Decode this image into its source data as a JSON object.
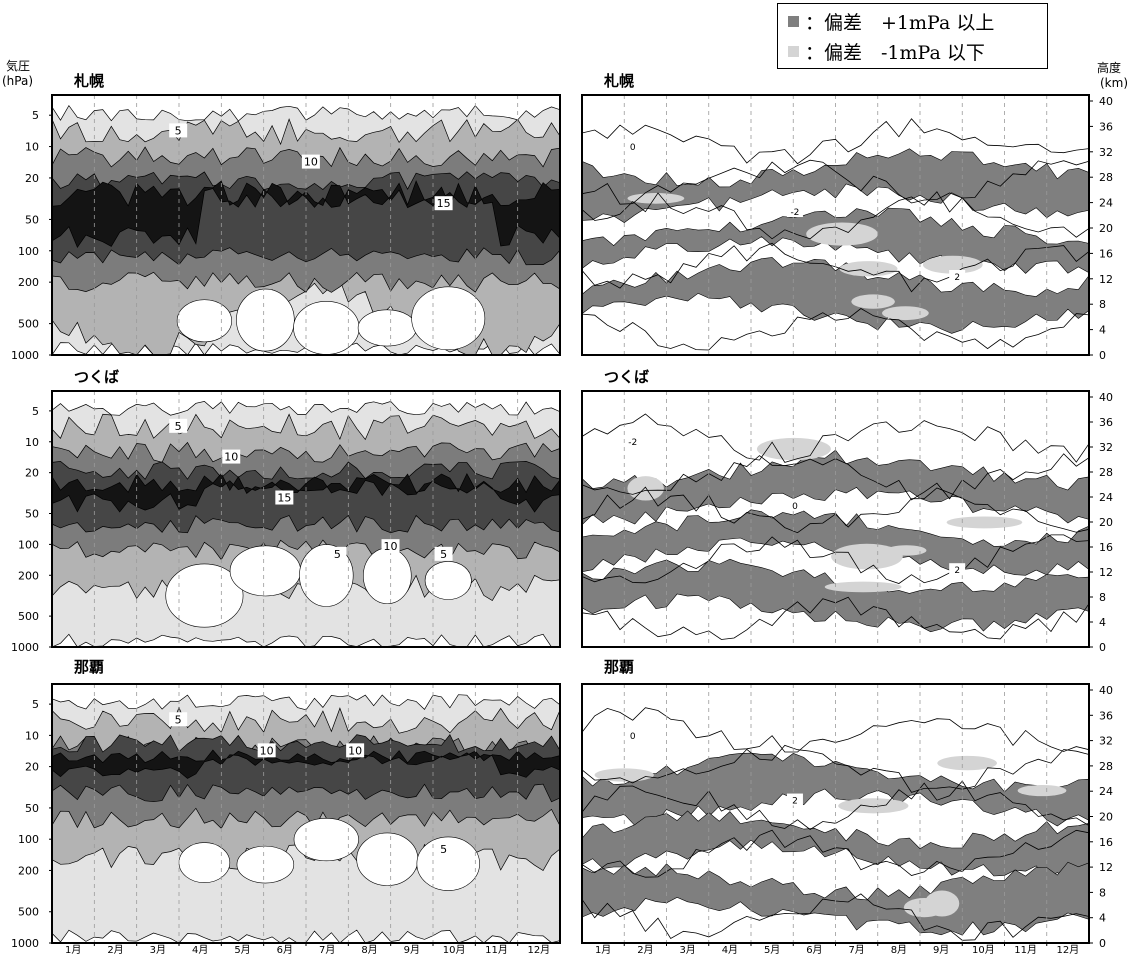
{
  "legend": {
    "items": [
      {
        "marker": "■",
        "color": "#7f7f7f",
        "text": "：偏差　+1mPa 以上"
      },
      {
        "marker": "■",
        "color": "#d4d4d4",
        "text": "：偏差　-1mPa 以下"
      }
    ]
  },
  "axis_titles": {
    "left": [
      "気圧",
      "(hPa)"
    ],
    "right": [
      "高度",
      "(km)"
    ]
  },
  "colors": {
    "plus_anomaly": "#7f7f7f",
    "minus_anomaly": "#d4d4d4",
    "level_0_5": "#e3e3e3",
    "level_5_10": "#b3b3b3",
    "level_10_15": "#7c7c7c",
    "level_15_20": "#464646",
    "level_20_plus": "#141414"
  },
  "chart_data": [
    {
      "type": "heatmap",
      "title": "札幌",
      "variable": "ozone partial pressure (mPa)",
      "x": [
        "1月",
        "2月",
        "3月",
        "4月",
        "5月",
        "6月",
        "7月",
        "8月",
        "9月",
        "10月",
        "11月",
        "12月"
      ],
      "yticks_left": [
        "5",
        "10",
        "20",
        "50",
        "100",
        "200",
        "500",
        "1000"
      ],
      "ylabel": "気圧 (hPa)",
      "contour_labels": [
        "5",
        "10",
        "15"
      ],
      "shading_levels": [
        0,
        5,
        10,
        15,
        20
      ],
      "peak_layer_hPa": [
        30,
        80
      ]
    },
    {
      "type": "heatmap",
      "title": "札幌",
      "variable": "ozone partial pressure anomaly (mPa)",
      "x": [
        "1月",
        "2月",
        "3月",
        "4月",
        "5月",
        "6月",
        "7月",
        "8月",
        "9月",
        "10月",
        "11月",
        "12月"
      ],
      "yticks_right": [
        "0",
        "4",
        "8",
        "12",
        "16",
        "20",
        "24",
        "28",
        "32",
        "36",
        "40"
      ],
      "ylabel": "高度 (km)",
      "contour_labels": [
        "0",
        "-2",
        "2"
      ],
      "shading": {
        "plus": "+1mPa 以上",
        "minus": "-1mPa 以下"
      }
    },
    {
      "type": "heatmap",
      "title": "つくば",
      "variable": "ozone partial pressure (mPa)",
      "x": [
        "1月",
        "2月",
        "3月",
        "4月",
        "5月",
        "6月",
        "7月",
        "8月",
        "9月",
        "10月",
        "11月",
        "12月"
      ],
      "yticks_left": [
        "5",
        "10",
        "20",
        "50",
        "100",
        "200",
        "500",
        "1000"
      ],
      "ylabel": "気圧 (hPa)",
      "contour_labels": [
        "5",
        "10",
        "15",
        "5",
        "10",
        "5"
      ],
      "shading_levels": [
        0,
        5,
        10,
        15,
        20
      ],
      "peak_layer_hPa": [
        25,
        50
      ]
    },
    {
      "type": "heatmap",
      "title": "つくば",
      "variable": "ozone partial pressure anomaly (mPa)",
      "x": [
        "1月",
        "2月",
        "3月",
        "4月",
        "5月",
        "6月",
        "7月",
        "8月",
        "9月",
        "10月",
        "11月",
        "12月"
      ],
      "yticks_right": [
        "0",
        "4",
        "8",
        "12",
        "16",
        "20",
        "24",
        "28",
        "32",
        "36",
        "40"
      ],
      "ylabel": "高度 (km)",
      "contour_labels": [
        "-2",
        "0",
        "2"
      ],
      "shading": {
        "plus": "+1mPa 以上",
        "minus": "-1mPa 以下"
      }
    },
    {
      "type": "heatmap",
      "title": "那覇",
      "variable": "ozone partial pressure (mPa)",
      "x": [
        "1月",
        "2月",
        "3月",
        "4月",
        "5月",
        "6月",
        "7月",
        "8月",
        "9月",
        "10月",
        "11月",
        "12月"
      ],
      "yticks_left": [
        "5",
        "10",
        "20",
        "50",
        "100",
        "200",
        "500",
        "1000"
      ],
      "ylabel": "気圧 (hPa)",
      "contour_labels": [
        "5",
        "10",
        "10",
        "5"
      ],
      "shading_levels": [
        0,
        5,
        10,
        15,
        20
      ],
      "peak_layer_hPa": [
        15,
        30
      ]
    },
    {
      "type": "heatmap",
      "title": "那覇",
      "variable": "ozone partial pressure anomaly (mPa)",
      "x": [
        "1月",
        "2月",
        "3月",
        "4月",
        "5月",
        "6月",
        "7月",
        "8月",
        "9月",
        "10月",
        "11月",
        "12月"
      ],
      "yticks_right": [
        "0",
        "4",
        "8",
        "12",
        "16",
        "20",
        "24",
        "28",
        "32",
        "36",
        "40"
      ],
      "ylabel": "高度 (km)",
      "contour_labels": [
        "0",
        "2"
      ],
      "shading": {
        "plus": "+1mPa 以上",
        "minus": "-1mPa 以下"
      }
    }
  ]
}
